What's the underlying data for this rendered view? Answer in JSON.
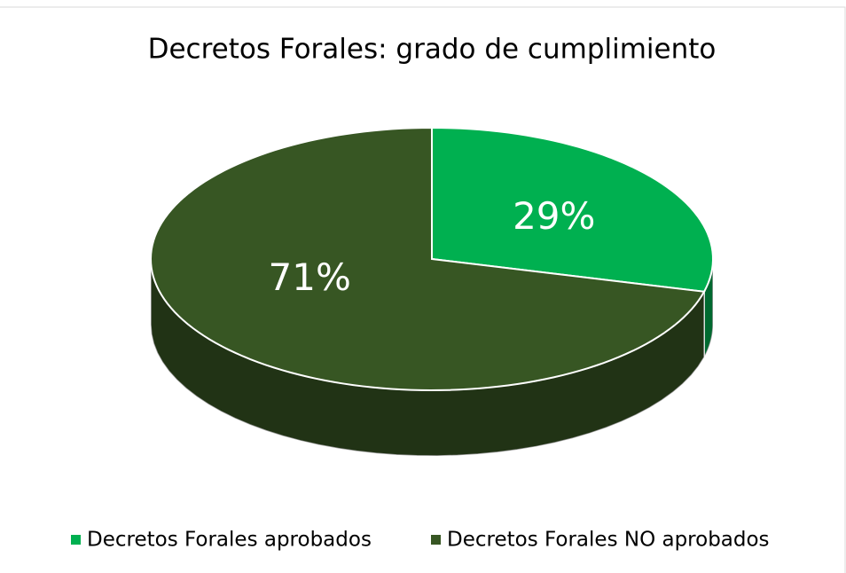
{
  "chart_data": {
    "type": "pie",
    "title": "Decretos Forales: grado de cumplimiento",
    "categories": [
      "Decretos Forales aprobados",
      "Decretos Forales NO aprobados"
    ],
    "values": [
      29,
      71
    ],
    "value_labels": [
      "29%",
      "71%"
    ],
    "colors": [
      "#00b050",
      "#375623"
    ],
    "legend": "bottom"
  }
}
